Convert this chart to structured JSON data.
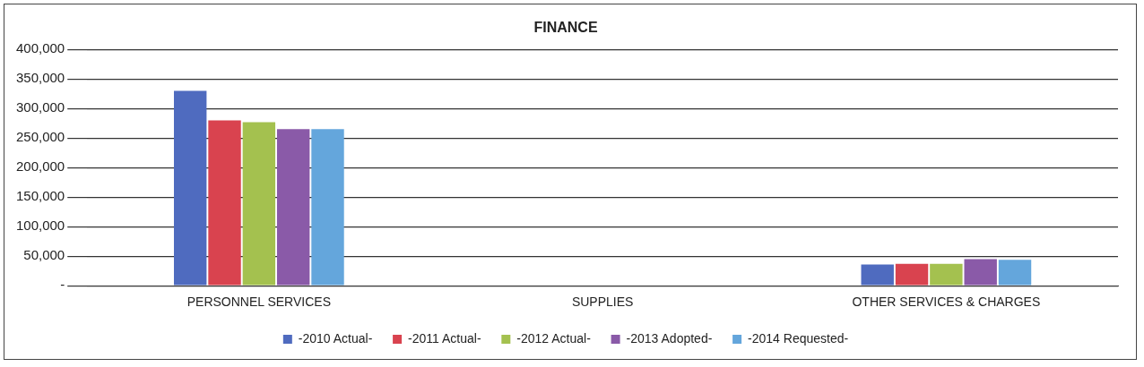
{
  "chart_data": {
    "type": "bar",
    "title": "FINANCE",
    "categories": [
      "PERSONNEL SERVICES",
      "SUPPLIES",
      "OTHER SERVICES & CHARGES"
    ],
    "series": [
      {
        "name": "-2010 Actual-",
        "color": "#4f6bbf",
        "values": [
          330000,
          0,
          36000
        ]
      },
      {
        "name": "-2011 Actual-",
        "color": "#d9434f",
        "values": [
          280000,
          0,
          37000
        ]
      },
      {
        "name": "-2012 Actual-",
        "color": "#a4c14f",
        "values": [
          277000,
          0,
          37000
        ]
      },
      {
        "name": "-2013 Adopted-",
        "color": "#8a5aa8",
        "values": [
          265000,
          0,
          45000
        ]
      },
      {
        "name": "-2014 Requested-",
        "color": "#64a6dc",
        "values": [
          265000,
          0,
          44000
        ]
      }
    ],
    "ylim": [
      0,
      400000
    ],
    "yticks": [
      {
        "value": 0,
        "label": "-"
      },
      {
        "value": 50000,
        "label": "50,000"
      },
      {
        "value": 100000,
        "label": "100,000"
      },
      {
        "value": 150000,
        "label": "150,000"
      },
      {
        "value": 200000,
        "label": "200,000"
      },
      {
        "value": 250000,
        "label": "250,000"
      },
      {
        "value": 300000,
        "label": "300,000"
      },
      {
        "value": 350000,
        "label": "350,000"
      },
      {
        "value": 400000,
        "label": "400,000"
      }
    ],
    "grid": "y",
    "legend": "bottom"
  }
}
